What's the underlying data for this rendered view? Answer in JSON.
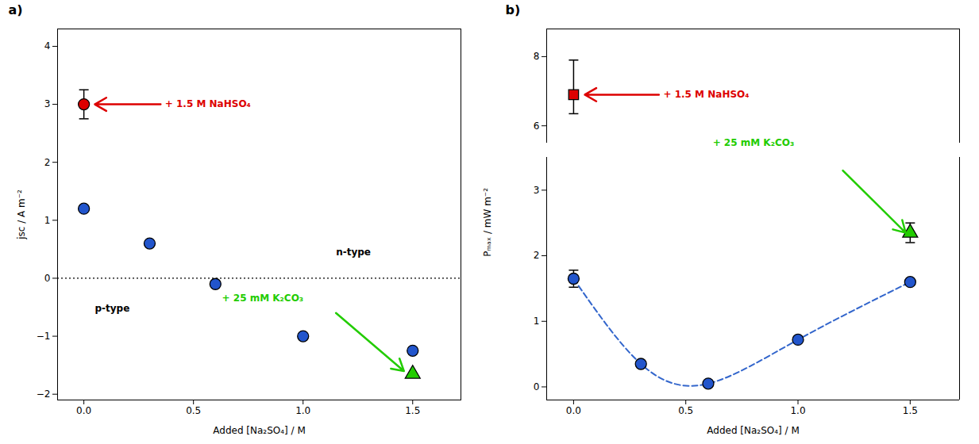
{
  "chart_data": [
    {
      "type": "scatter",
      "panel_label": "a)",
      "xlabel": "Added [Na₂SO₄] / M",
      "ylabel": "jsc / A m⁻²",
      "xlim": [
        -0.12,
        1.72
      ],
      "ylim": [
        -2.1,
        4.3
      ],
      "xticks": [
        {
          "value": 0.0,
          "label": "0.0"
        },
        0.5,
        {
          "value": 1.0,
          "label": "1.0"
        },
        1.5
      ],
      "yticks": [
        -2,
        -1,
        0,
        1,
        2,
        3,
        4
      ],
      "series": [
        {
          "color": "#2255cc",
          "marker": "circle",
          "x": [
            0.0,
            0.3,
            0.6,
            1.0,
            1.5
          ],
          "values": [
            1.2,
            0.6,
            -0.1,
            -1.0,
            -1.25
          ]
        },
        {
          "color": "#dd0000",
          "marker": "circle",
          "x": [
            0.0
          ],
          "values": [
            3.0
          ],
          "error": [
            0.25
          ]
        },
        {
          "color": "#22cc00",
          "marker": "triangle",
          "x": [
            1.5
          ],
          "values": [
            -1.65
          ]
        }
      ],
      "annotations": [
        {
          "type": "hline",
          "y": 0,
          "line_style": "dotted"
        },
        {
          "type": "arrow",
          "x1": 0.35,
          "y1": 3.0,
          "x2": 0.05,
          "y2": 3.0,
          "color": "#dd0000"
        },
        {
          "type": "text",
          "text": "+ 1.5 M NaHSO₄",
          "x": 0.37,
          "y": 3.0,
          "color": "#dd0000"
        },
        {
          "type": "text",
          "text": "+ 25 mM K₂CO₃",
          "x": 0.63,
          "y": -0.35,
          "color": "#22cc00"
        },
        {
          "type": "arrow",
          "x1": 1.15,
          "y1": -0.6,
          "x2": 1.46,
          "y2": -1.6,
          "color": "#22cc00"
        },
        {
          "type": "text",
          "text": "n-type",
          "x": 1.15,
          "y": 0.45,
          "color": "black"
        },
        {
          "type": "text",
          "text": "p-type",
          "x": 0.05,
          "y": -0.52,
          "color": "black"
        }
      ]
    },
    {
      "type": "scatter",
      "panel_label": "b)",
      "xlabel": "Added [Na₂SO₄] / M",
      "ylabel": "Pₘₐₓ / mW m⁻²",
      "xlim": [
        -0.12,
        1.72
      ],
      "xticks": [
        {
          "value": 0.0,
          "label": "0.0"
        },
        0.5,
        {
          "value": 1.0,
          "label": "1.0"
        },
        1.5
      ],
      "y_segments": [
        {
          "ylim": [
            5.5,
            8.8
          ],
          "yticks": [
            6,
            8
          ]
        },
        {
          "ylim": [
            -0.2,
            3.5
          ],
          "yticks": [
            0,
            1,
            2,
            3
          ]
        }
      ],
      "series": [
        {
          "type": "line",
          "line_style": "dashed",
          "color": "#3366cc",
          "x": [
            0.0,
            0.3,
            0.6,
            1.0,
            1.5
          ],
          "values": [
            1.65,
            0.35,
            0.05,
            0.72,
            1.6
          ]
        },
        {
          "color": "#2255cc",
          "marker": "circle",
          "x": [
            0.0,
            0.3,
            0.6,
            1.0,
            1.5
          ],
          "values": [
            1.65,
            0.35,
            0.05,
            0.72,
            1.6
          ],
          "error": [
            0.13,
            0.0,
            0.0,
            0.0,
            0.0
          ]
        },
        {
          "color": "#dd0000",
          "marker": "square",
          "x": [
            0.0
          ],
          "values": [
            6.9
          ],
          "error_lo": [
            0.55
          ],
          "error_hi": [
            1.0
          ]
        },
        {
          "color": "#22cc00",
          "marker": "triangle",
          "x": [
            1.5
          ],
          "values": [
            2.35
          ],
          "error": [
            0.15
          ]
        }
      ],
      "annotations": [
        {
          "type": "arrow",
          "x1": 0.38,
          "y1": 6.9,
          "x2": 0.05,
          "y2": 6.9,
          "color": "#dd0000"
        },
        {
          "type": "text",
          "text": "+ 1.5 M NaHSO₄",
          "x": 0.4,
          "y": 6.9,
          "color": "#dd0000"
        },
        {
          "type": "text",
          "text": "+ 25 mM K₂CO₃",
          "x": 0.62,
          "y": 5.5,
          "color": "#22cc00"
        },
        {
          "type": "arrow",
          "x1": 1.2,
          "y1": 3.3,
          "x2": 1.48,
          "y2": 2.35,
          "color": "#22cc00"
        }
      ]
    }
  ]
}
